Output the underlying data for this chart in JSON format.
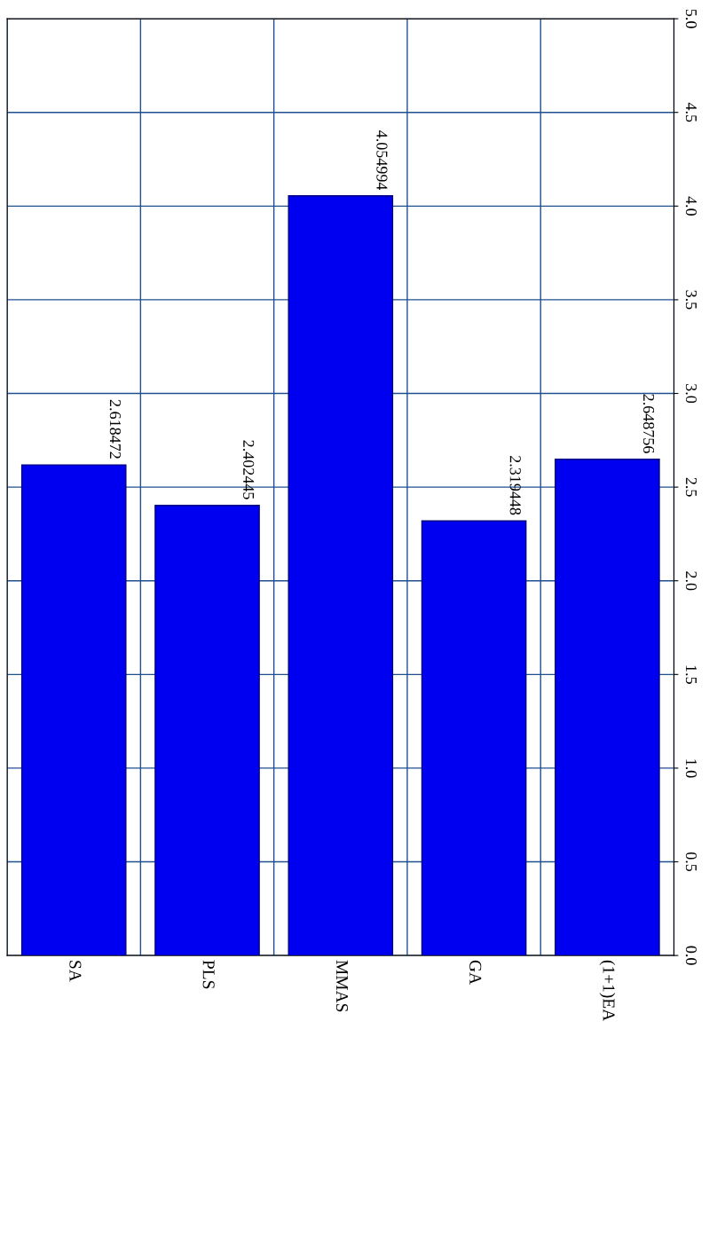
{
  "chart_data": {
    "type": "bar",
    "categories": [
      "SA",
      "PLS",
      "MMAS",
      "GA",
      "(1+1)EA"
    ],
    "values": [
      2.618472,
      2.402445,
      4.054994,
      2.319448,
      2.648756
    ],
    "color": "#0000f0",
    "ylim": [
      0,
      5
    ],
    "yticks": [
      {
        "value": 0,
        "label": "0.0"
      },
      {
        "value": 0.5,
        "label": "0.5"
      },
      {
        "value": 1,
        "label": "1.0"
      },
      {
        "value": 1.5,
        "label": "1.5"
      },
      {
        "value": 2,
        "label": "2.0"
      },
      {
        "value": 2.5,
        "label": "2.5"
      },
      {
        "value": 3,
        "label": "3.0"
      },
      {
        "value": 3.5,
        "label": "3.5"
      },
      {
        "value": 4,
        "label": "4.0"
      },
      {
        "value": 4.5,
        "label": "4.5"
      },
      {
        "value": 5,
        "label": "5.0"
      }
    ],
    "grid": true,
    "data_labels": true
  }
}
